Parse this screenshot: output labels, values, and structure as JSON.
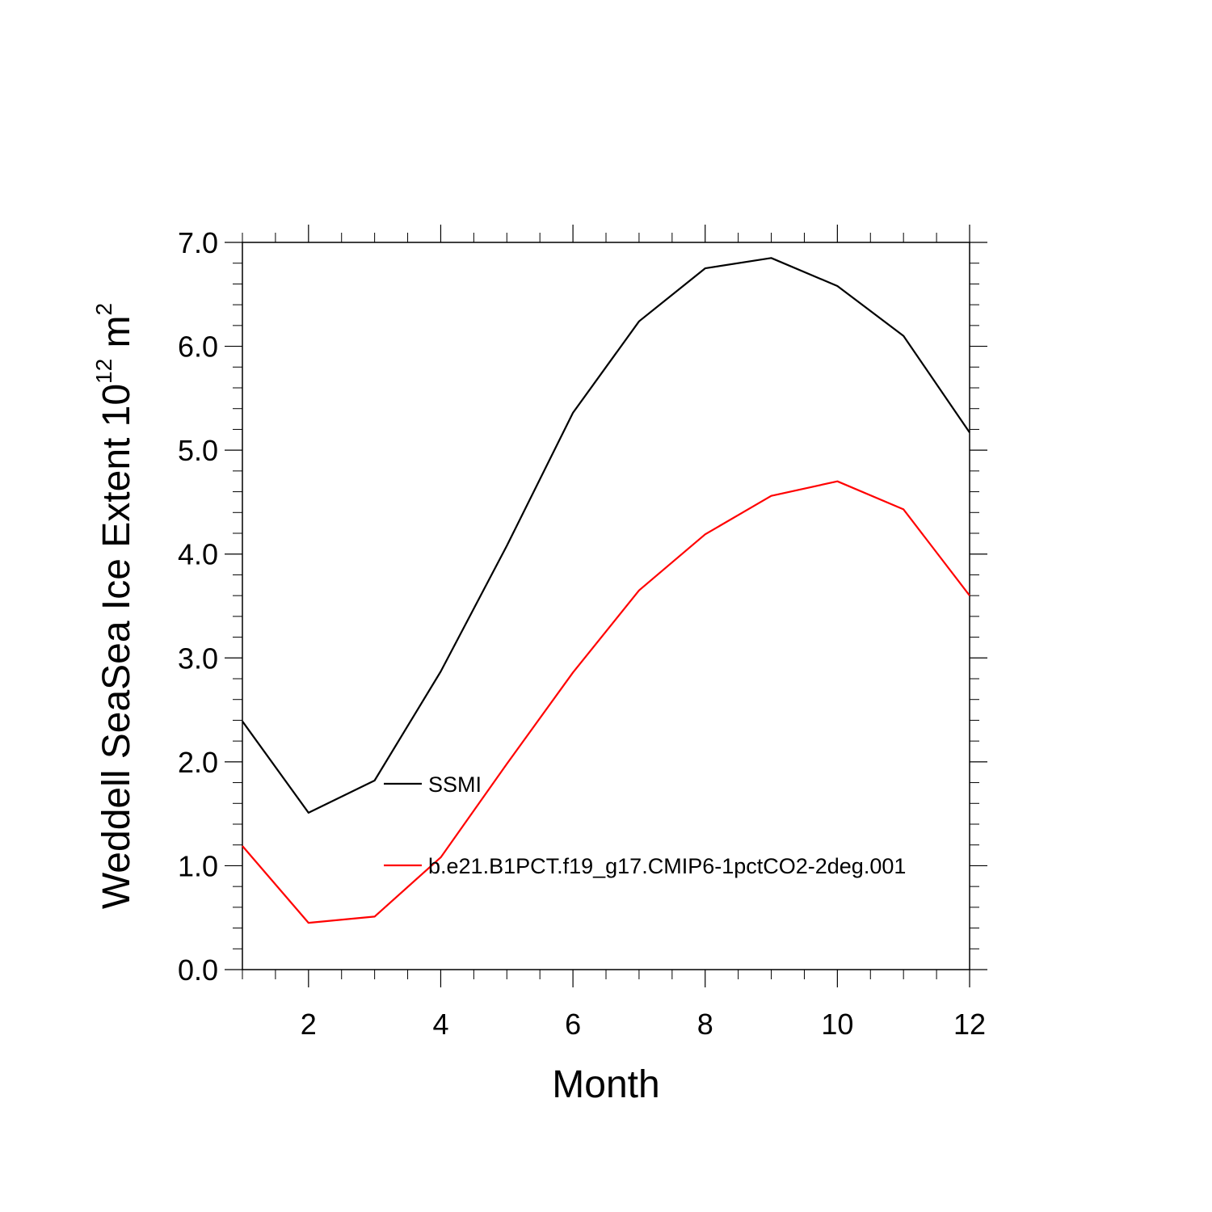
{
  "chart_data": {
    "type": "line",
    "xlabel": "Month",
    "ylabel": {
      "text": "Weddell SeaSea Ice Extent 10",
      "exponent_1": "12",
      "unit": " m",
      "exponent_2": "2"
    },
    "xlim": [
      1,
      12
    ],
    "ylim": [
      0.0,
      7.0
    ],
    "x_ticks": [
      2,
      4,
      6,
      8,
      10,
      12
    ],
    "x_tick_labels": [
      "2",
      "4",
      "6",
      "8",
      "10",
      "12"
    ],
    "y_ticks": [
      0,
      1,
      2,
      3,
      4,
      5,
      6,
      7
    ],
    "y_tick_labels": [
      "0.0",
      "1.0",
      "2.0",
      "3.0",
      "4.0",
      "5.0",
      "6.0",
      "7.0"
    ],
    "grid": false,
    "legend_position": "inside-center",
    "x": [
      1,
      2,
      3,
      4,
      5,
      6,
      7,
      8,
      9,
      10,
      11,
      12
    ],
    "series": [
      {
        "name": "SSMI",
        "color": "#000000",
        "values": [
          2.39,
          1.51,
          1.82,
          2.87,
          4.08,
          5.36,
          6.24,
          6.75,
          6.85,
          6.58,
          6.1,
          5.17
        ]
      },
      {
        "name": "b.e21.B1PCT.f19_g17.CMIP6-1pctCO2-2deg.001",
        "color": "#ff0000",
        "values": [
          1.19,
          0.45,
          0.51,
          1.08,
          1.98,
          2.86,
          3.65,
          4.19,
          4.56,
          4.7,
          4.43,
          3.6
        ]
      }
    ]
  }
}
